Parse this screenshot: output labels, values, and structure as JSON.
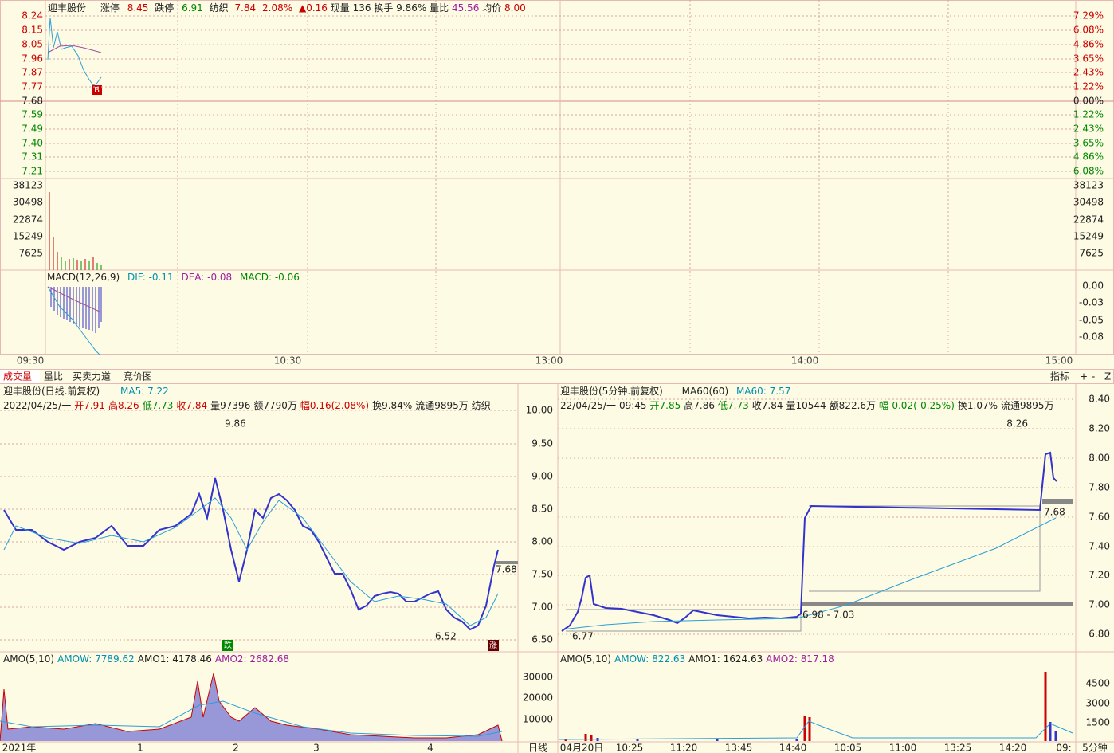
{
  "top": {
    "name": "迎丰股份",
    "limit_up_label": "涨停",
    "limit_up": "8.45",
    "limit_down_label": "跌停",
    "limit_down": "6.91",
    "sector": "纺织",
    "price": "7.84",
    "change_pct": "2.08%",
    "change": "▲0.16",
    "volume_label": "现量",
    "volume": "136",
    "turnover_label": "换手",
    "turnover": "9.86%",
    "ratio_label": "量比",
    "ratio": "45.56",
    "avg_label": "均价",
    "avg": "8.00",
    "price_ticks": [
      "8.24",
      "8.15",
      "8.05",
      "7.96",
      "7.87",
      "7.77",
      "7.68",
      "7.59",
      "7.49",
      "7.40",
      "7.31",
      "7.21"
    ],
    "pct_ticks": [
      "7.29%",
      "6.08%",
      "4.86%",
      "3.65%",
      "2.43%",
      "1.22%",
      "0.00%",
      "1.22%",
      "2.43%",
      "3.65%",
      "4.86%",
      "6.08%"
    ],
    "vol_ticks": [
      "38123",
      "30498",
      "22874",
      "15249",
      "7625"
    ],
    "marker": "B",
    "macd": {
      "name": "MACD(12,26,9)",
      "dif": "DIF: -0.11",
      "dea": "DEA: -0.08",
      "macd": "MACD: -0.06",
      "ticks": [
        "0.00",
        "-0.03",
        "-0.05",
        "-0.08"
      ]
    },
    "time_ticks": [
      "09:30",
      "10:30",
      "13:00",
      "14:00",
      "15:00"
    ]
  },
  "tabs": [
    "成交量",
    "量比",
    "买卖力道",
    "竞价图"
  ],
  "tools": [
    "指标",
    "+",
    "-",
    "Z"
  ],
  "daily": {
    "title": "迎丰股份(日线.前复权)",
    "ma": "MA5: 7.22",
    "info": [
      "2022/04/25/一",
      "开7.91",
      "高8.26",
      "低7.73",
      "收7.84",
      "量97396",
      "额7790万",
      "幅0.16(2.08%)",
      "换9.84%",
      "流通9895万",
      "纺织"
    ],
    "ticks": [
      "10.00",
      "9.50",
      "9.00",
      "8.50",
      "8.00",
      "7.50",
      "7.00",
      "6.50"
    ],
    "high_label": "9.86",
    "low_label": "6.52",
    "last_label": "7.68",
    "down_mark": "跌",
    "up_mark": "涨",
    "amo": [
      "AMO(5,10)",
      "AMOW: 7789.62",
      "AMO1: 4178.46",
      "AMO2: 2682.68"
    ],
    "amo_ticks": [
      "30000",
      "20000",
      "10000"
    ],
    "x_labels": [
      "2021年",
      "1",
      "2",
      "3",
      "4"
    ],
    "period": "日线"
  },
  "minute": {
    "title": "迎丰股份(5分钟.前复权)",
    "ma_name": "MA60(60)",
    "ma": "MA60: 7.57",
    "info": [
      "22/04/25/一",
      "09:45",
      "开7.85",
      "高7.86",
      "低7.73",
      "收7.84",
      "量10544",
      "额822.6万",
      "幅-0.02(-0.25%)",
      "换1.07%",
      "流通9895万"
    ],
    "ticks": [
      "8.40",
      "8.20",
      "8.00",
      "7.80",
      "7.60",
      "7.40",
      "7.20",
      "7.00",
      "6.80"
    ],
    "high_label": "8.26",
    "last_label": "7.68",
    "range_label": "6.98 - 7.03",
    "low_label": "6.77",
    "amo": [
      "AMO(5,10)",
      "AMOW: 822.63",
      "AMO1: 1624.63",
      "AMO2: 817.18"
    ],
    "amo_ticks": [
      "4500",
      "3000",
      "1500"
    ],
    "x_labels": [
      "04月20日",
      "10:25",
      "11:20",
      "13:45",
      "14:40",
      "10:05",
      "11:00",
      "13:25",
      "14:20",
      "09:"
    ],
    "period": "5分钟"
  }
}
